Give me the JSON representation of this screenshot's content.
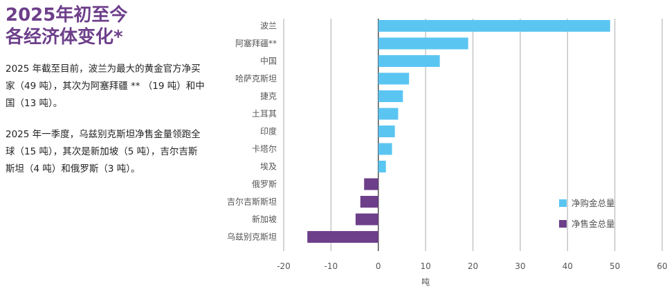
{
  "sidebar": {
    "title_line1": "2025年初至今",
    "title_line2": "各经济体变化*",
    "paragraph1": "2025  年截至目前，波兰为最大的黄金官方净买家（49 吨），其次为阿塞拜疆 ** （19 吨）和中国（13 吨）。",
    "paragraph2": "2025  年一季度，乌兹别克斯坦净售金量领跑全球（15 吨），其次是新加坡（5 吨），吉尔吉斯斯坦（4 吨）和俄罗斯（3 吨）。"
  },
  "colors": {
    "buy": "#5bc5f2",
    "sell": "#6d3f8a",
    "title": "#6d3f8a"
  },
  "chart_data": {
    "type": "bar",
    "orientation": "horizontal",
    "categories": [
      "波兰",
      "阿塞拜疆**",
      "中国",
      "哈萨克斯坦",
      "捷克",
      "土耳其",
      "印度",
      "卡塔尔",
      "埃及",
      "俄罗斯",
      "吉尔吉斯斯坦",
      "新加坡",
      "乌兹别克斯坦"
    ],
    "values": [
      49,
      19,
      13,
      6.5,
      5.2,
      4.2,
      3.5,
      2.9,
      1.6,
      -3,
      -3.8,
      -4.8,
      -15
    ],
    "series": [
      {
        "name": "净购金总量",
        "color": "#5bc5f2"
      },
      {
        "name": "净售金总量",
        "color": "#6d3f8a"
      }
    ],
    "xlabel": "吨",
    "xlim": [
      -20,
      60
    ],
    "xticks": [
      -20,
      -10,
      0,
      10,
      20,
      30,
      40,
      50,
      60
    ],
    "grid": true,
    "legend": "bottom-right"
  }
}
